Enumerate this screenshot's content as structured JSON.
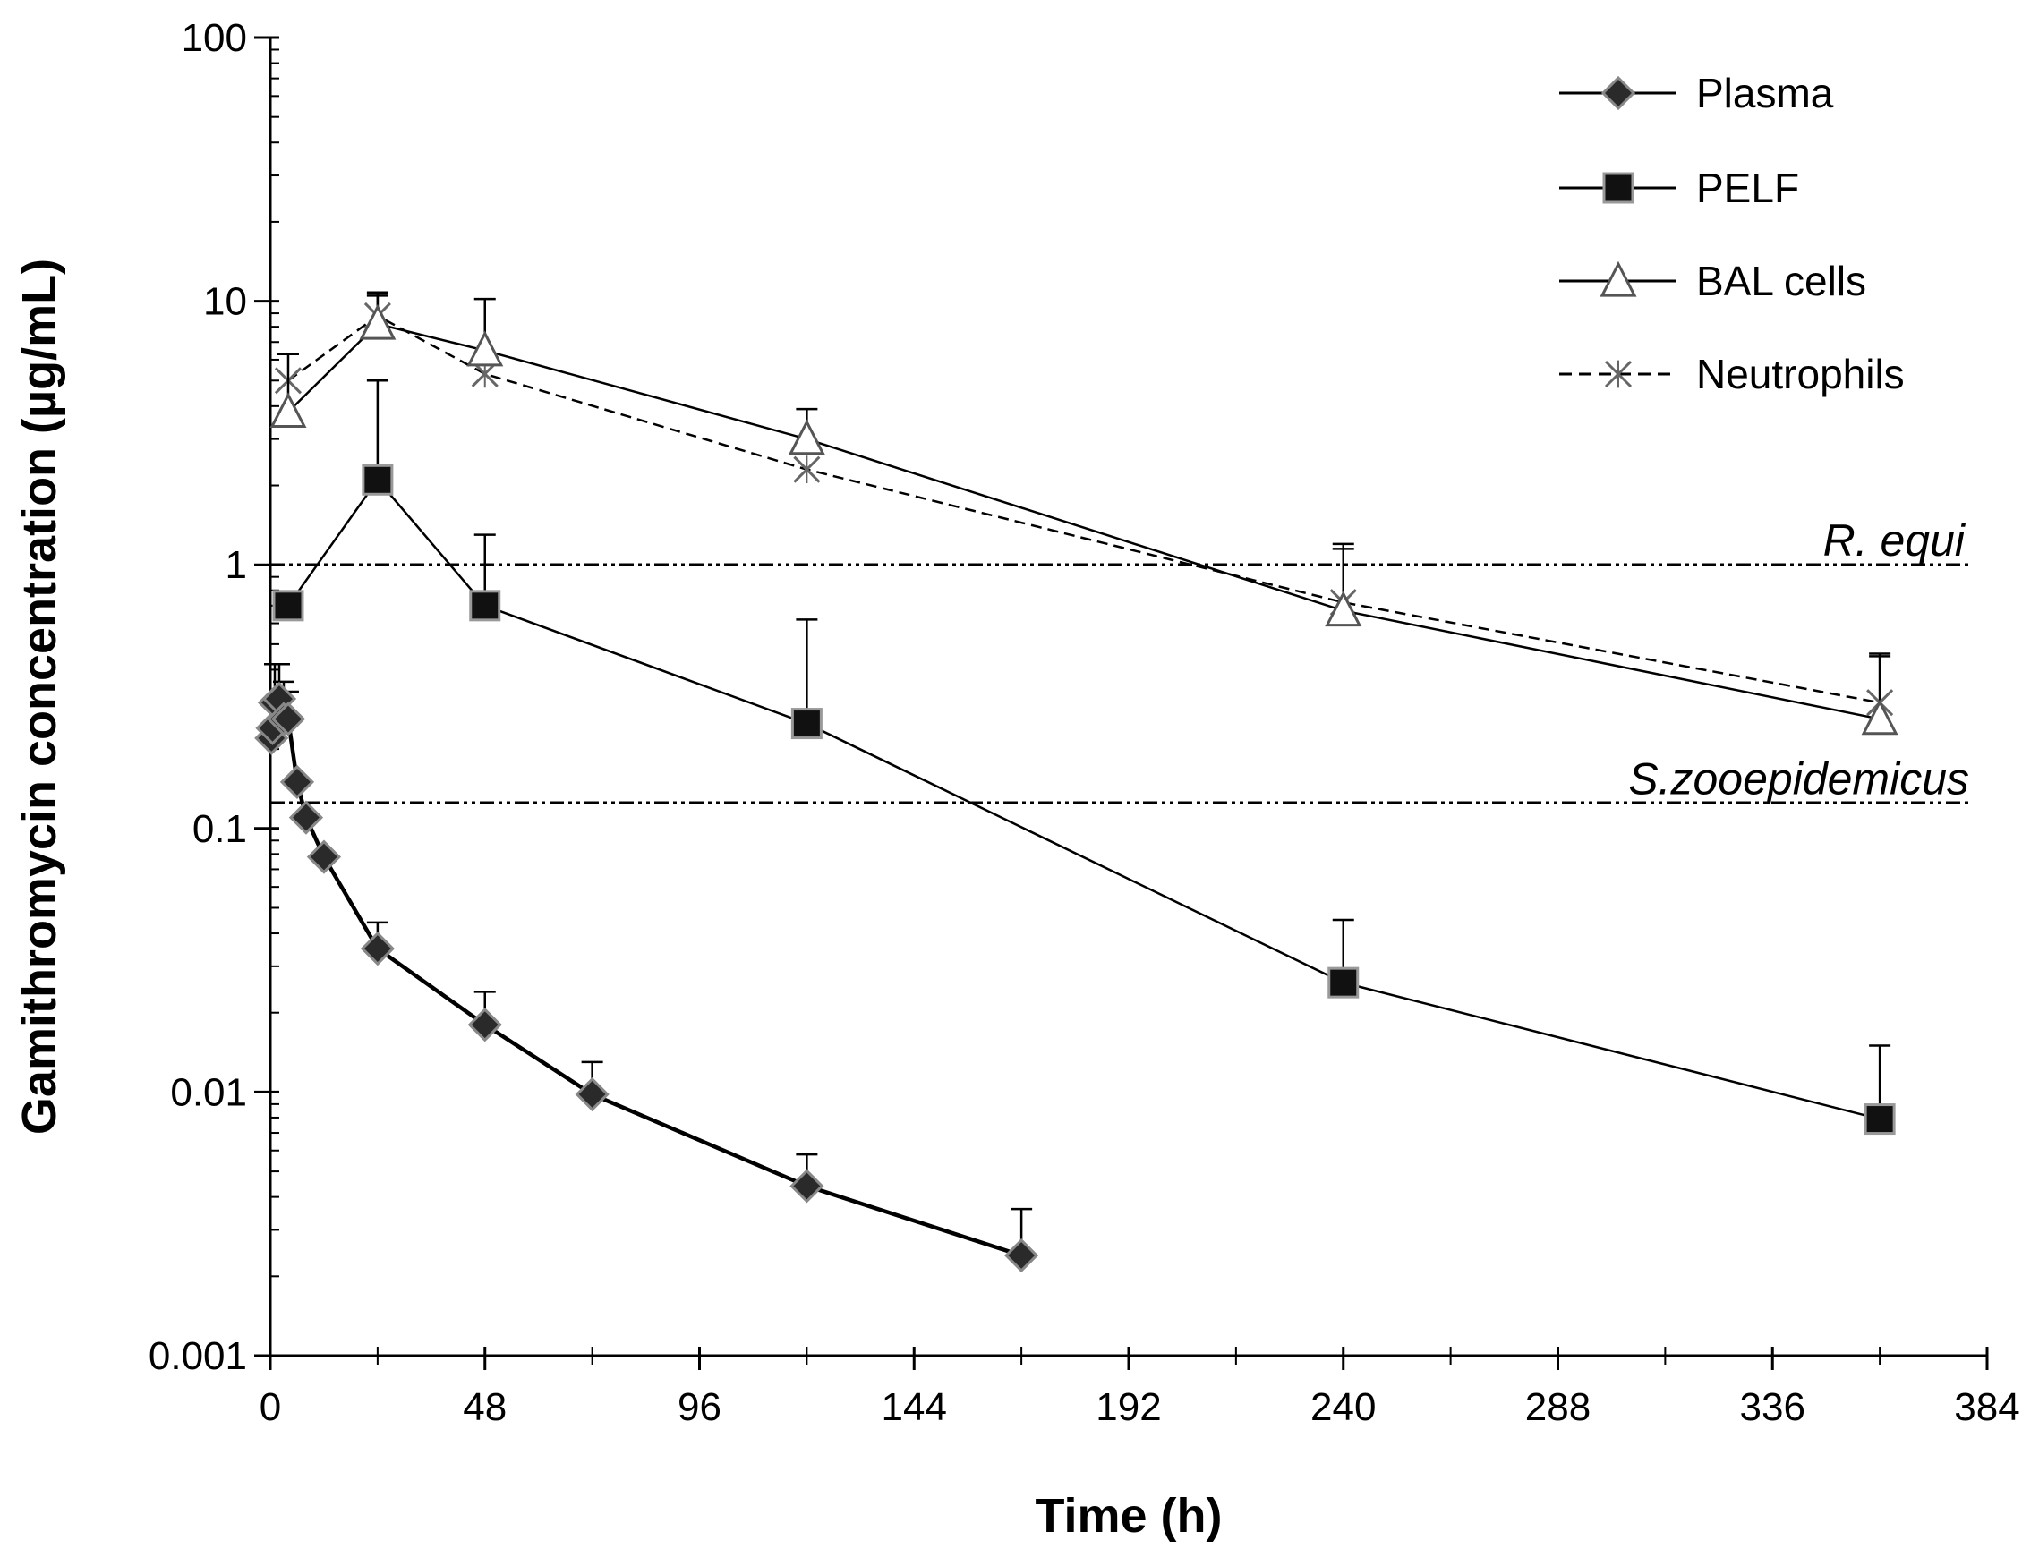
{
  "chart_data": {
    "type": "line",
    "title": "",
    "xlabel": "Time (h)",
    "ylabel": "Gamithromycin concentration (µg/mL)",
    "yscale": "log",
    "xlim": [
      0,
      384
    ],
    "ylim": [
      0.001,
      100
    ],
    "x_ticks": [
      0,
      48,
      96,
      144,
      192,
      240,
      288,
      336,
      384
    ],
    "x_tick_labels": [
      "0",
      "48",
      "96",
      "144",
      "192",
      "240",
      "288",
      "336",
      "384"
    ],
    "y_ticks": [
      0.001,
      0.01,
      0.1,
      1,
      10,
      100
    ],
    "y_tick_labels": [
      "0.001",
      "0.01",
      "0.1",
      "1",
      "10",
      "100"
    ],
    "legend_position": "top-right",
    "series": [
      {
        "name": "Plasma",
        "marker": "diamond",
        "line": "solid",
        "x": [
          0.25,
          0.5,
          1,
          2,
          3,
          4,
          6,
          8,
          12,
          24,
          48,
          72,
          120,
          168
        ],
        "values": [
          0.22,
          0.24,
          0.3,
          0.31,
          0.26,
          0.26,
          0.15,
          0.11,
          0.078,
          0.035,
          0.018,
          0.0098,
          0.0044,
          0.0024
        ],
        "error_upper": [
          null,
          null,
          0.42,
          0.42,
          0.36,
          0.33,
          null,
          null,
          null,
          0.044,
          0.024,
          0.013,
          0.0058,
          0.0036
        ]
      },
      {
        "name": "PELF",
        "marker": "square",
        "line": "solid",
        "x": [
          4,
          24,
          48,
          120,
          240,
          360
        ],
        "values": [
          0.7,
          2.1,
          0.7,
          0.25,
          0.026,
          0.0079
        ],
        "error_upper": [
          null,
          5.0,
          1.3,
          0.62,
          0.045,
          0.015
        ]
      },
      {
        "name": "BAL cells",
        "marker": "triangle-open",
        "line": "solid",
        "x": [
          4,
          24,
          48,
          120,
          240,
          360
        ],
        "values": [
          3.8,
          8.2,
          6.5,
          3.0,
          0.67,
          0.26
        ],
        "error_upper": [
          6.3,
          10.5,
          10.2,
          3.9,
          1.2,
          0.46
        ]
      },
      {
        "name": "Neutrophils",
        "marker": "x",
        "line": "dashed",
        "x": [
          4,
          24,
          48,
          120,
          240,
          360
        ],
        "values": [
          5.0,
          8.8,
          5.3,
          2.3,
          0.72,
          0.3
        ],
        "error_upper": [
          null,
          10.8,
          null,
          null,
          1.15,
          0.45
        ]
      }
    ],
    "reference_lines": [
      {
        "label": "R. equi",
        "value": 1
      },
      {
        "label": "S.zooepidemicus",
        "value": 0.125
      }
    ]
  }
}
